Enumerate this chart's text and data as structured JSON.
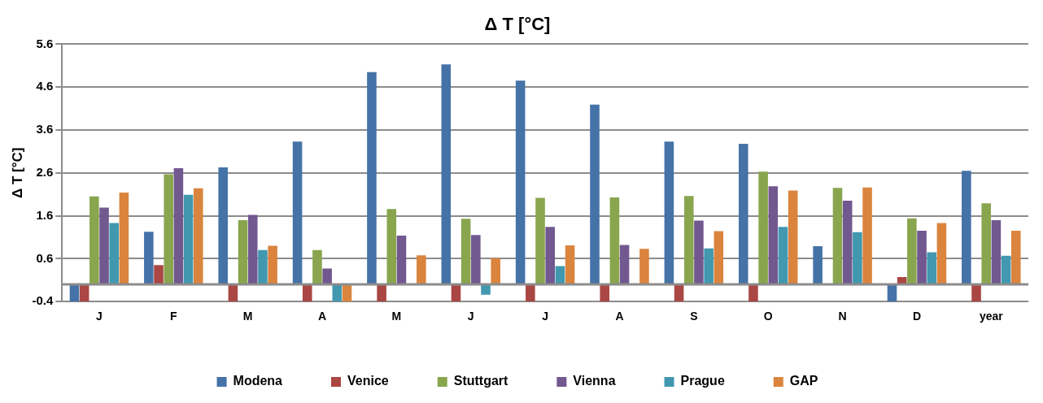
{
  "chart_data": {
    "type": "bar",
    "title": "Δ T [°C]",
    "ylabel": "Δ T [°C]",
    "categories": [
      "J",
      "F",
      "M",
      "A",
      "M",
      "J",
      "J",
      "A",
      "S",
      "O",
      "N",
      "D",
      "year"
    ],
    "series": [
      {
        "name": "Modena",
        "color": "#4572a7",
        "values": [
          -0.4,
          1.23,
          2.73,
          3.33,
          4.95,
          5.13,
          4.75,
          4.19,
          3.33,
          3.28,
          0.89,
          -0.4,
          2.65
        ]
      },
      {
        "name": "Venice",
        "color": "#aa4643",
        "values": [
          -0.4,
          0.45,
          -0.4,
          -0.4,
          -0.4,
          -0.4,
          -0.4,
          -0.4,
          -0.4,
          -0.4,
          null,
          0.17,
          -0.4
        ]
      },
      {
        "name": "Stuttgart",
        "color": "#89a54e",
        "values": [
          2.05,
          2.57,
          1.5,
          0.8,
          1.76,
          1.53,
          2.02,
          2.03,
          2.06,
          2.63,
          2.25,
          1.54,
          1.89
        ]
      },
      {
        "name": "Vienna",
        "color": "#71588f",
        "values": [
          1.79,
          2.71,
          1.62,
          0.37,
          1.14,
          1.15,
          1.34,
          0.92,
          1.49,
          2.29,
          1.95,
          1.25,
          1.5
        ]
      },
      {
        "name": "Prague",
        "color": "#4198af",
        "values": [
          1.43,
          2.09,
          0.8,
          -0.4,
          null,
          -0.24,
          0.43,
          null,
          0.84,
          1.34,
          1.22,
          0.75,
          0.67
        ]
      },
      {
        "name": "GAP",
        "color": "#db843d",
        "values": [
          2.14,
          2.24,
          0.9,
          -0.4,
          0.68,
          0.61,
          0.91,
          0.83,
          1.24,
          2.19,
          2.26,
          1.43,
          1.25
        ]
      }
    ],
    "ylim": [
      -0.4,
      5.6
    ],
    "yticks": [
      -0.4,
      0.6,
      1.6,
      2.6,
      3.6,
      4.6,
      5.6
    ],
    "grid": "y",
    "legend": "bottom"
  }
}
